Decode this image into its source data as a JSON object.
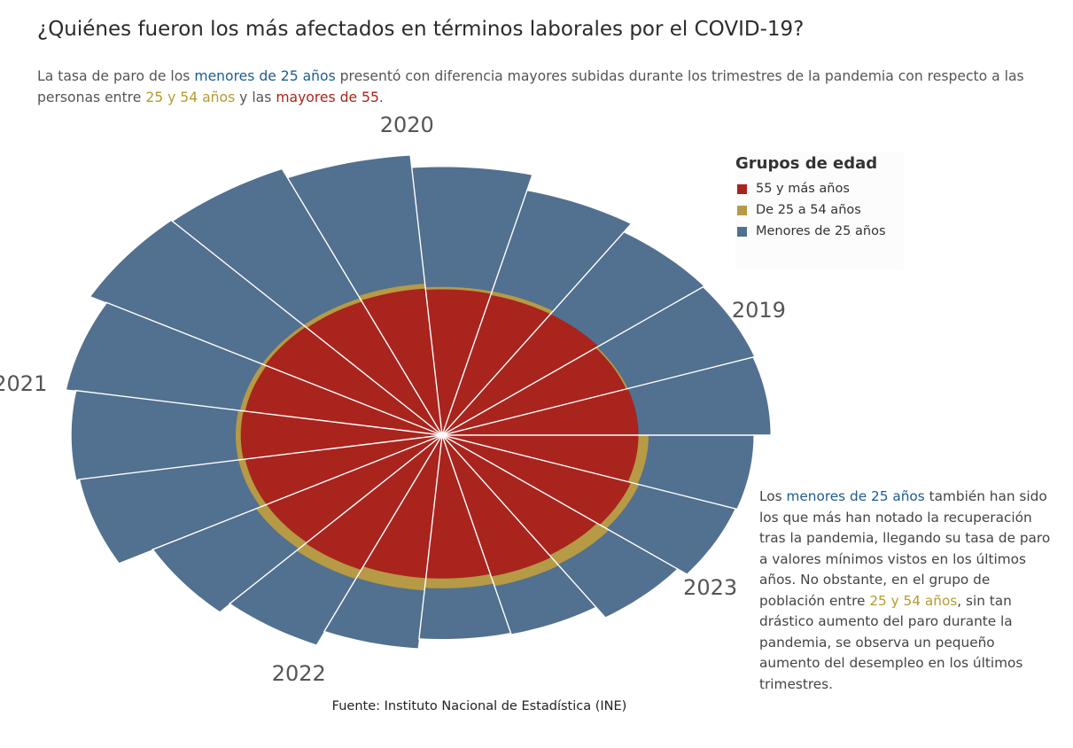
{
  "title": "¿Quiénes fueron los más afectados en términos laborales por el COVID-19?",
  "subtitle": {
    "p1": "La tasa de paro de los ",
    "h1": "menores de 25 años",
    "p2": " presentó con diferencia mayores subidas durante los trimestres de la pandemia con respecto a las personas entre ",
    "h2": "25 y 54 años",
    "p3": " y las ",
    "h3": "mayores de 55",
    "p4": "."
  },
  "legend": {
    "title": "Grupos de edad",
    "items": [
      {
        "label": "55 y más años",
        "color": "#a9241d"
      },
      {
        "label": "De 25 a 54 años",
        "color": "#b69a45"
      },
      {
        "label": "Menores de 25 años",
        "color": "#52708f"
      }
    ]
  },
  "note": {
    "p1": "Los ",
    "h1": "menores de 25 años",
    "p2": " también han sido los que más han notado la recuperación tras la pandemia, llegando su tasa de paro a valores mínimos vistos en los últimos años. No obstante, en el grupo de población entre ",
    "h2": "25 y 54 años",
    "p3": ", sin tan drástico aumento del paro durante la pandemia, se observa un pequeño aumento del desempleo en los últimos trimestres."
  },
  "source": "Fuente: Instituto Nacional de Estadística (INE)",
  "chart_data": {
    "type": "radial-bar",
    "categories": [
      "2019",
      "2019",
      "2019",
      "2020",
      "2020",
      "2020",
      "2020",
      "2021",
      "2021",
      "2021",
      "2021",
      "2022",
      "2022",
      "2022",
      "2022",
      "2023",
      "2023",
      "2023",
      "2023"
    ],
    "year_labels": [
      "2019",
      "2020",
      "2021",
      "2022",
      "2023"
    ],
    "series": [
      {
        "name": "55 y más años",
        "color": "#a9241d",
        "values": [
          11.6,
          11.5,
          11.7,
          11.7,
          11.8,
          11.9,
          11.8,
          11.9,
          11.8,
          11.9,
          11.8,
          11.8,
          11.9,
          11.6,
          11.6,
          11.8,
          11.6,
          11.8,
          11.6
        ]
      },
      {
        "name": "De 25 a 54 años",
        "color": "#b69a45",
        "values": [
          11.4,
          11.6,
          11.6,
          12.0,
          12.0,
          12.3,
          12.1,
          12.1,
          12.1,
          12.2,
          12.2,
          12.5,
          12.7,
          12.6,
          12.4,
          12.6,
          12.5,
          12.3,
          12.2
        ]
      },
      {
        "name": "Menores de 25 años",
        "color": "#52708f",
        "values": [
          19.4,
          19.5,
          19.6,
          20.4,
          21.7,
          22.7,
          23.5,
          23.6,
          22.5,
          21.9,
          21.7,
          19.4,
          18.5,
          17.3,
          16.5,
          16.6,
          17.6,
          18.3,
          18.4
        ]
      }
    ]
  }
}
